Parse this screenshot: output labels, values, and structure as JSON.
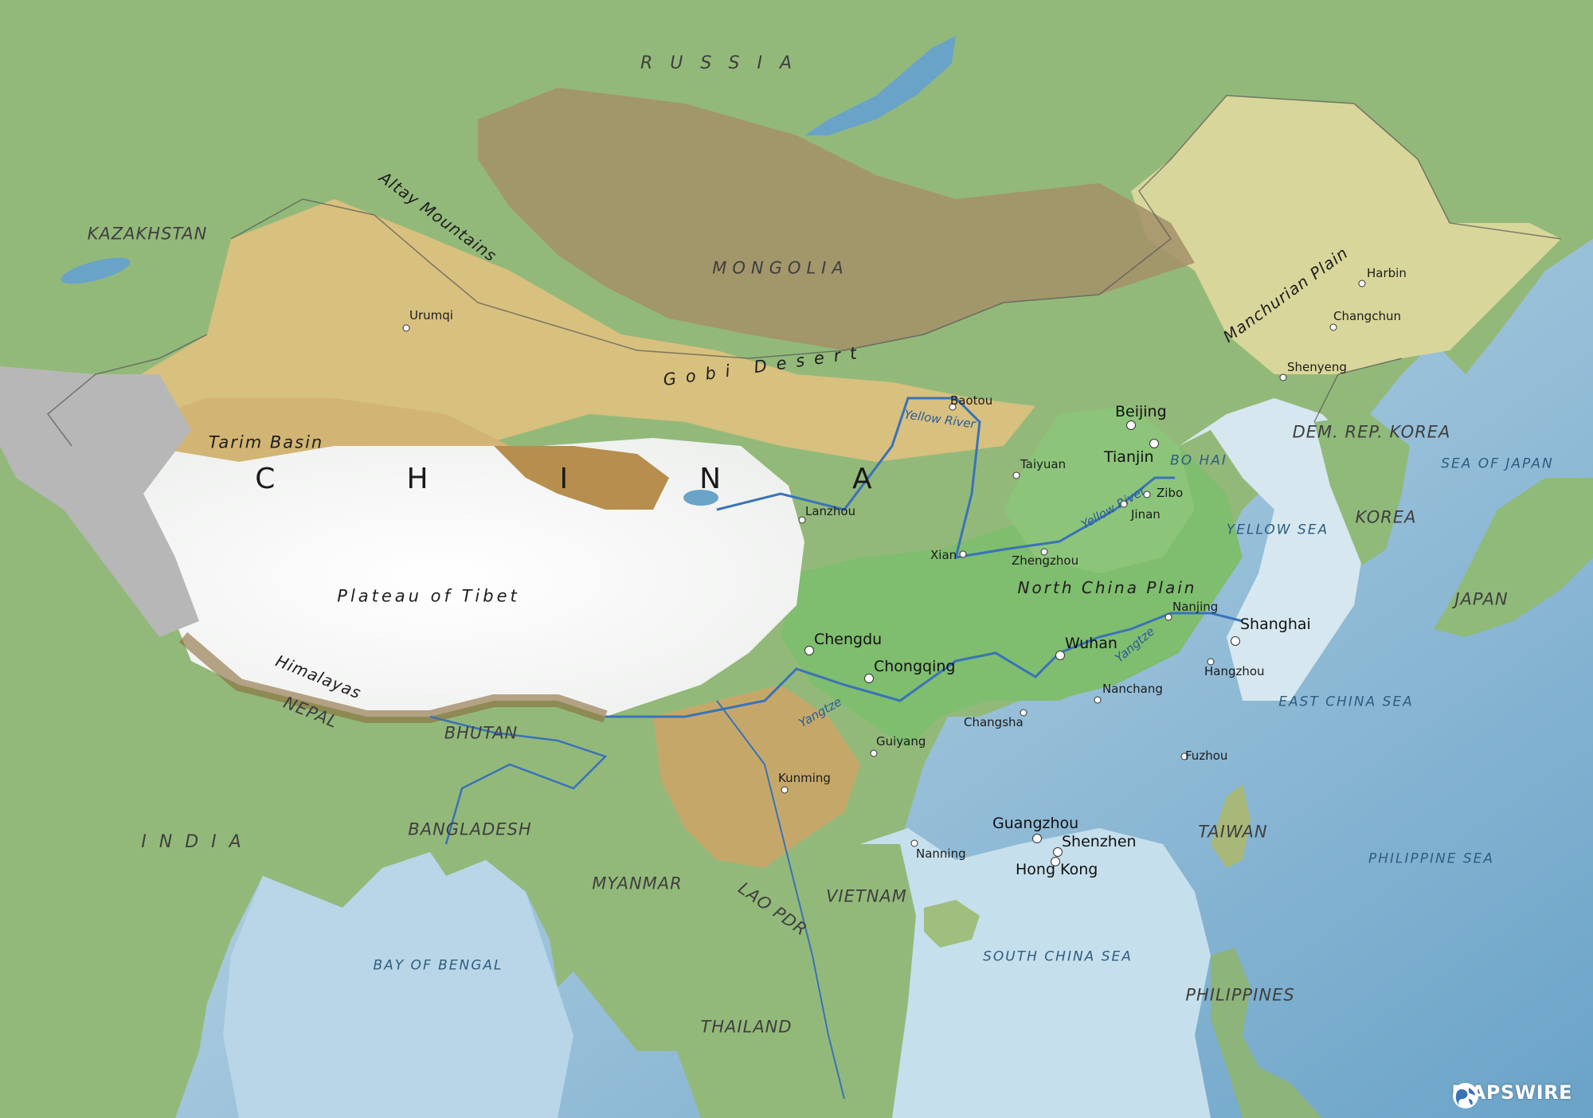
{
  "countries": {
    "russia": "RUSSIA",
    "kazakhstan": "KAZAKHSTAN",
    "mongolia": "MONGOLIA",
    "china": "CHINA",
    "nepal": "NEPAL",
    "bhutan": "BHUTAN",
    "india": "INDIA",
    "bangladesh": "BANGLADESH",
    "myanmar": "MYANMAR",
    "lao": "LAO PDR",
    "vietnam": "VIETNAM",
    "thailand": "THAILAND",
    "taiwan": "TAIWAN",
    "philippines": "PHILIPPINES",
    "dprk": "DEM. REP. KOREA",
    "korea": "KOREA",
    "japan": "JAPAN"
  },
  "seas": {
    "sea_of_japan": "SEA OF JAPAN",
    "bo_hai": "BO HAI",
    "yellow_sea": "YELLOW SEA",
    "east_china_sea": "EAST CHINA SEA",
    "philippine_sea": "PHILIPPINE SEA",
    "south_china_sea": "SOUTH CHINA SEA",
    "bay_of_bengal": "BAY OF BENGAL"
  },
  "physical": {
    "altay": "Altay Mountains",
    "gobi": "Gobi Desert",
    "tarim": "Tarim Basin",
    "tibet": "Plateau of Tibet",
    "himalayas": "Himalayas",
    "manchurian": "Manchurian Plain",
    "north_china": "North China Plain"
  },
  "rivers": {
    "yellow_1": "Yellow River",
    "yellow_2": "Yellow River",
    "yangtze_1": "Yangtze",
    "yangtze_2": "Yangtze"
  },
  "cities": {
    "urumqi": "Urumqi",
    "baotou": "Baotou",
    "beijing": "Beijing",
    "tianjin": "Tianjin",
    "taiyuan": "Taiyuan",
    "zibo": "Zibo",
    "jinan": "Jinan",
    "lanzhou": "Lanzhou",
    "xian": "Xian",
    "zhengzhou": "Zhengzhou",
    "harbin": "Harbin",
    "changchun": "Changchun",
    "shenyeng": "Shenyeng",
    "nanjing": "Nanjing",
    "shanghai": "Shanghai",
    "hangzhou": "Hangzhou",
    "wuhan": "Wuhan",
    "chengdu": "Chengdu",
    "chongqing": "Chongqing",
    "nanchang": "Nanchang",
    "changsha": "Changsha",
    "guiyang": "Guiyang",
    "fuzhou": "Fuzhou",
    "kunming": "Kunming",
    "guangzhou": "Guangzhou",
    "shenzhen": "Shenzhen",
    "hong_kong": "Hong Kong",
    "nanning": "Nanning"
  },
  "logo": {
    "text": "MAPSWIRE",
    "icon": "globe-icon"
  },
  "colors": {
    "sea": "#cfe2ee",
    "lowland": "#8fbf7a",
    "plateau_snow": "#ffffff",
    "mountain": "#b08a4e",
    "desert": "#d8c48a",
    "river": "#3a72b8"
  }
}
